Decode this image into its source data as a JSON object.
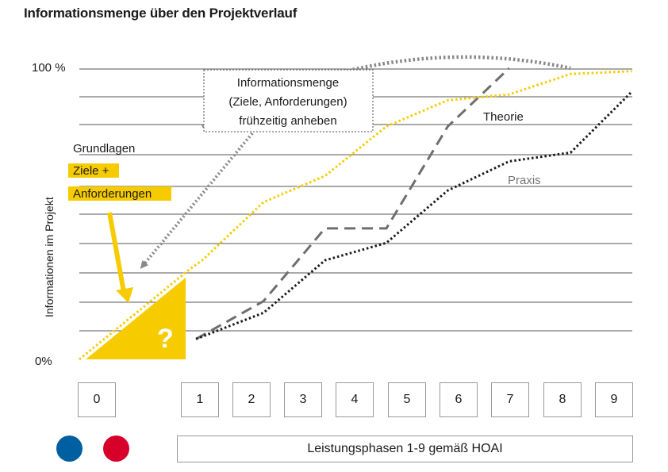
{
  "title": "Informationsmenge über den Projektverlauf",
  "colors": {
    "yellow": "#f6cc00",
    "theory": "#6e6e6e",
    "practice": "#1a1a1a",
    "grid": "#555555",
    "blue": "#005fa0",
    "red": "#d6002a"
  },
  "chart_data": {
    "type": "line",
    "ylabel": "Informationen im Projekt",
    "yticks": [
      "100 %",
      "0%"
    ],
    "ylim": [
      0,
      100
    ],
    "xlim": [
      0,
      9
    ],
    "grid": true,
    "categories": [
      "0",
      "1",
      "2",
      "3",
      "4",
      "5",
      "6",
      "7",
      "8",
      "9"
    ],
    "series": [
      {
        "name": "Theorie",
        "style": "dashed",
        "color": "#6e6e6e",
        "points": [
          [
            1.9,
            7
          ],
          [
            3,
            20
          ],
          [
            4,
            45
          ],
          [
            5,
            45
          ],
          [
            6,
            80
          ],
          [
            7,
            100
          ]
        ]
      },
      {
        "name": "Praxis",
        "style": "dotted",
        "color": "#1a1a1a",
        "points": [
          [
            1.9,
            7
          ],
          [
            3,
            16
          ],
          [
            4,
            34
          ],
          [
            5,
            40
          ],
          [
            6,
            58
          ],
          [
            7,
            68
          ],
          [
            8,
            71
          ],
          [
            9,
            92
          ]
        ]
      },
      {
        "name": "",
        "style": "dotted",
        "color": "#f6cc00",
        "points": [
          [
            0,
            0
          ],
          [
            1.8,
            31
          ],
          [
            2,
            34
          ],
          [
            3,
            54
          ],
          [
            4,
            63
          ],
          [
            5,
            80
          ],
          [
            6,
            89
          ],
          [
            7,
            91
          ],
          [
            8,
            98
          ],
          [
            9,
            99
          ]
        ]
      },
      {
        "name": "",
        "style": "dotted-arc",
        "color": "#888888",
        "points": [
          [
            2,
            80
          ],
          [
            5,
            108
          ],
          [
            8,
            100
          ]
        ]
      }
    ],
    "annotations": {
      "box": [
        "Informationsmenge",
        "(Ziele, Anforderungen)",
        "frühzeitig anheben"
      ],
      "theory_label": "Theorie",
      "practice_label": "Praxis",
      "grundlagen": "Grundlagen",
      "ziele": "Ziele +",
      "anforderungen": "Anforderungen",
      "question": "?"
    }
  },
  "phases": [
    "0",
    "1",
    "2",
    "3",
    "4",
    "5",
    "6",
    "7",
    "8",
    "9"
  ],
  "hoai_label": "Leistungsphasen 1-9 gemäß HOAI",
  "dots": [
    {
      "name": "blue",
      "color": "#005fa0"
    },
    {
      "name": "red",
      "color": "#d6002a"
    }
  ]
}
